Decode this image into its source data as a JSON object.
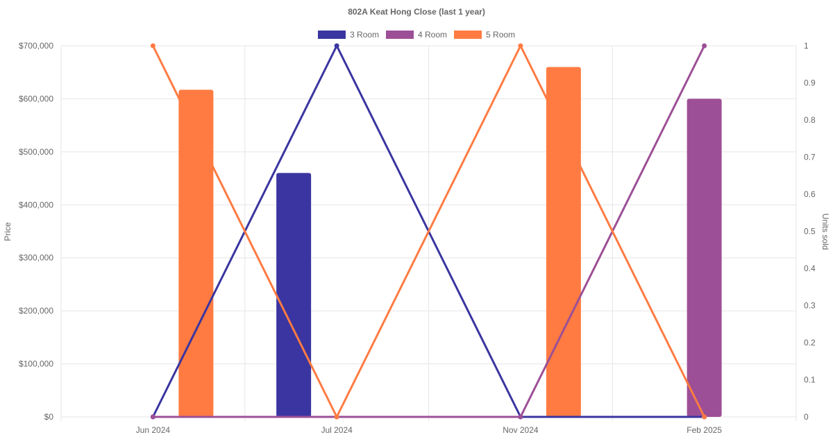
{
  "chart_data": {
    "type": "bar",
    "title": "802A Keat Hong Close (last 1 year)",
    "categories": [
      "Jun 2024",
      "Jul 2024",
      "Nov 2024",
      "Feb 2025"
    ],
    "price_axis": {
      "label": "Price",
      "ylim": [
        0,
        700000
      ],
      "ticks": [
        "$0",
        "$100,000",
        "$200,000",
        "$300,000",
        "$400,000",
        "$500,000",
        "$600,000",
        "$700,000"
      ]
    },
    "units_axis": {
      "label": "Units sold",
      "ylim": [
        0,
        1
      ],
      "ticks": [
        "0",
        "0.1",
        "0.2",
        "0.3",
        "0.4",
        "0.5",
        "0.6",
        "0.7",
        "0.8",
        "0.9",
        "1"
      ]
    },
    "series": [
      {
        "name": "3 Room",
        "color": "#3a35a0",
        "price": [
          null,
          460000,
          null,
          null
        ],
        "units": [
          0,
          1,
          0,
          0
        ]
      },
      {
        "name": "4 Room",
        "color": "#9c4f96",
        "price": [
          null,
          null,
          null,
          600000
        ],
        "units": [
          0,
          0,
          0,
          1
        ]
      },
      {
        "name": "5 Room",
        "color": "#ff7b42",
        "price": [
          617000,
          null,
          660000,
          null
        ],
        "units": [
          1,
          0,
          1,
          0
        ]
      }
    ],
    "legend_position": "top-center",
    "grid": true
  }
}
